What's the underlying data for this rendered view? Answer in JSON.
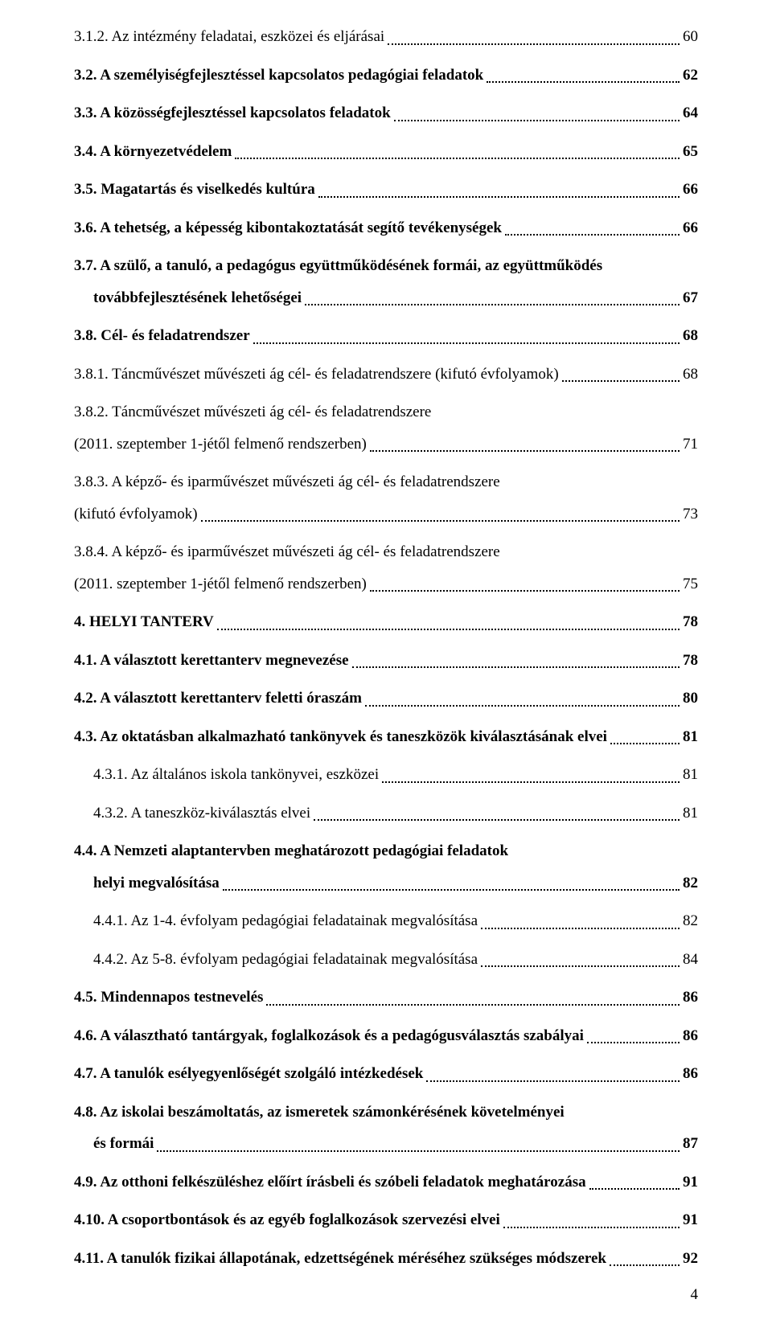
{
  "toc": [
    {
      "id": "e0",
      "label": "3.1.2. Az intézmény feladatai, eszközei és eljárásai",
      "page": "60",
      "bold": false,
      "multiline": false,
      "indent": 0,
      "contIndent": 0
    },
    {
      "id": "e1",
      "label": "3.2. A személyiségfejlesztéssel kapcsolatos pedagógiai feladatok",
      "page": "62",
      "bold": true,
      "multiline": false,
      "indent": 0,
      "contIndent": 0
    },
    {
      "id": "e2",
      "label": "3.3. A közösségfejlesztéssel kapcsolatos feladatok",
      "page": "64",
      "bold": true,
      "multiline": false,
      "indent": 0,
      "contIndent": 0
    },
    {
      "id": "e3",
      "label": "3.4. A környezetvédelem",
      "page": "65",
      "bold": true,
      "multiline": false,
      "indent": 0,
      "contIndent": 0
    },
    {
      "id": "e4",
      "label": "3.5. Magatartás és viselkedés kultúra",
      "page": "66",
      "bold": true,
      "multiline": false,
      "indent": 0,
      "contIndent": 0
    },
    {
      "id": "e5",
      "label": "3.6. A tehetség, a képesség kibontakoztatását segítő tevékenységek",
      "page": "66",
      "bold": true,
      "multiline": false,
      "indent": 0,
      "contIndent": 0
    },
    {
      "id": "e6",
      "label1": "3.7. A szülő, a tanuló, a pedagógus együttműködésének formái, az együttműködés",
      "label2": "továbbfejlesztésének lehetőségei",
      "page": "67",
      "bold": true,
      "multiline": true,
      "indent": 0,
      "contIndent": 1
    },
    {
      "id": "e7",
      "label": "3.8. Cél- és feladatrendszer",
      "page": "68",
      "bold": true,
      "multiline": false,
      "indent": 0,
      "contIndent": 0
    },
    {
      "id": "e8",
      "label": "3.8.1. Táncművészet művészeti ág cél- és feladatrendszere (kifutó évfolyamok)",
      "page": "68",
      "bold": false,
      "multiline": false,
      "indent": 0,
      "contIndent": 0
    },
    {
      "id": "e9",
      "label1": "3.8.2. Táncművészet művészeti ág cél- és feladatrendszere",
      "label2": "(2011. szeptember 1-jétől felmenő rendszerben)",
      "page": "71",
      "bold": false,
      "multiline": true,
      "indent": 0,
      "contIndent": 0
    },
    {
      "id": "e10",
      "label1": "3.8.3. A képző- és iparművészet művészeti ág cél- és feladatrendszere",
      "label2": "(kifutó évfolyamok)",
      "page": "73",
      "bold": false,
      "multiline": true,
      "indent": 0,
      "contIndent": 0
    },
    {
      "id": "e11",
      "label1": "3.8.4. A képző- és iparművészet művészeti ág cél- és feladatrendszere",
      "label2": "(2011. szeptember 1-jétől felmenő rendszerben)",
      "page": "75",
      "bold": false,
      "multiline": true,
      "indent": 0,
      "contIndent": 0
    },
    {
      "id": "e12",
      "label": "4. HELYI TANTERV",
      "page": "78",
      "bold": true,
      "multiline": false,
      "indent": 0,
      "contIndent": 0
    },
    {
      "id": "e13",
      "label": "4.1. A választott kerettanterv megnevezése",
      "page": "78",
      "bold": true,
      "multiline": false,
      "indent": 0,
      "contIndent": 0
    },
    {
      "id": "e14",
      "label": "4.2. A választott kerettanterv feletti óraszám",
      "page": "80",
      "bold": true,
      "multiline": false,
      "indent": 0,
      "contIndent": 0
    },
    {
      "id": "e15",
      "label": "4.3. Az oktatásban alkalmazható tankönyvek és taneszközök kiválasztásának elvei",
      "page": "81",
      "bold": true,
      "multiline": false,
      "indent": 0,
      "contIndent": 0
    },
    {
      "id": "e16",
      "label": "4.3.1. Az általános iskola tankönyvei, eszközei",
      "page": "81",
      "bold": false,
      "multiline": false,
      "indent": 1,
      "contIndent": 0
    },
    {
      "id": "e17",
      "label": "4.3.2. A taneszköz-kiválasztás elvei",
      "page": "81",
      "bold": false,
      "multiline": false,
      "indent": 1,
      "contIndent": 0
    },
    {
      "id": "e18",
      "label1": "4.4. A Nemzeti alaptantervben meghatározott pedagógiai feladatok",
      "label2": "helyi megvalósítása",
      "page": "82",
      "bold": true,
      "multiline": true,
      "indent": 0,
      "contIndent": 1
    },
    {
      "id": "e19",
      "label": "4.4.1. Az 1-4. évfolyam pedagógiai feladatainak megvalósítása",
      "page": "82",
      "bold": false,
      "multiline": false,
      "indent": 1,
      "contIndent": 0
    },
    {
      "id": "e20",
      "label": "4.4.2. Az 5-8. évfolyam pedagógiai feladatainak megvalósítása",
      "page": "84",
      "bold": false,
      "multiline": false,
      "indent": 1,
      "contIndent": 0
    },
    {
      "id": "e21",
      "label": "4.5. Mindennapos testnevelés",
      "page": "86",
      "bold": true,
      "multiline": false,
      "indent": 0,
      "contIndent": 0
    },
    {
      "id": "e22",
      "label": "4.6. A választható tantárgyak, foglalkozások és a pedagógusválasztás szabályai",
      "page": "86",
      "bold": true,
      "multiline": false,
      "indent": 0,
      "contIndent": 0
    },
    {
      "id": "e23",
      "label": "4.7. A tanulók esélyegyenlőségét szolgáló intézkedések",
      "page": "86",
      "bold": true,
      "multiline": false,
      "indent": 0,
      "contIndent": 0
    },
    {
      "id": "e24",
      "label1": "4.8. Az iskolai beszámoltatás, az ismeretek számonkérésének követelményei",
      "label2": "és formái",
      "page": "87",
      "bold": true,
      "multiline": true,
      "indent": 0,
      "contIndent": 1
    },
    {
      "id": "e25",
      "label": "4.9. Az otthoni felkészüléshez előírt írásbeli és szóbeli feladatok meghatározása",
      "page": "91",
      "bold": true,
      "multiline": false,
      "indent": 0,
      "contIndent": 0
    },
    {
      "id": "e26",
      "label": "4.10. A csoportbontások és az egyéb foglalkozások szervezési elvei",
      "page": "91",
      "bold": true,
      "multiline": false,
      "indent": 0,
      "contIndent": 0
    },
    {
      "id": "e27",
      "label": "4.11. A tanulók fizikai állapotának, edzettségének méréséhez szükséges módszerek",
      "page": "92",
      "bold": true,
      "multiline": false,
      "indent": 0,
      "contIndent": 0
    }
  ],
  "pageNumber": "4"
}
